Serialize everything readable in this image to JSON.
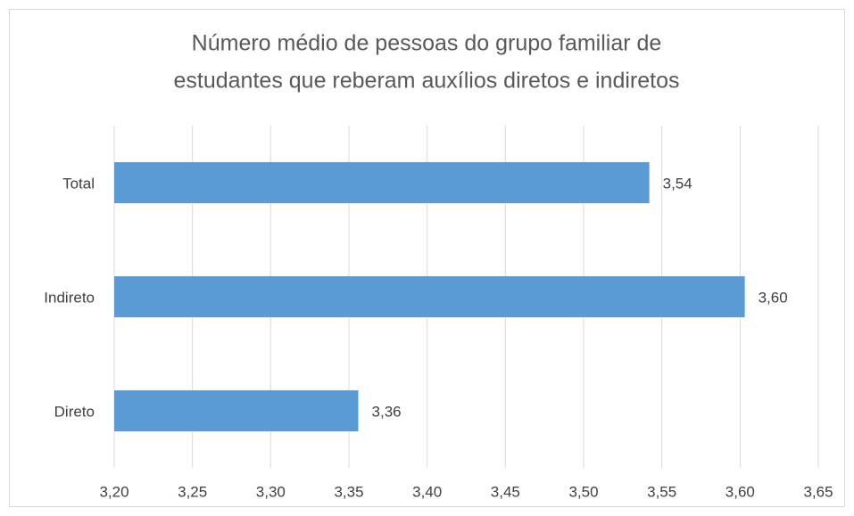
{
  "chart_data": {
    "type": "hbar",
    "title": [
      "Número médio de pessoas do grupo familiar de",
      "estudantes que reberam auxílios diretos e indiretos"
    ],
    "categories": [
      "Total",
      "Indireto",
      "Direto"
    ],
    "values": [
      3.542,
      3.603,
      3.356
    ],
    "value_labels": [
      "3,54",
      "3,60",
      "3,36"
    ],
    "color": "#5b9bd5",
    "xlim": [
      3.2,
      3.65
    ],
    "xticks": [
      {
        "value": 3.2,
        "label": "3,20"
      },
      {
        "value": 3.25,
        "label": "3,25"
      },
      {
        "value": 3.3,
        "label": "3,30"
      },
      {
        "value": 3.35,
        "label": "3,35"
      },
      {
        "value": 3.4,
        "label": "3,40"
      },
      {
        "value": 3.45,
        "label": "3,45"
      },
      {
        "value": 3.5,
        "label": "3,50"
      },
      {
        "value": 3.55,
        "label": "3,55"
      },
      {
        "value": 3.6,
        "label": "3,60"
      },
      {
        "value": 3.65,
        "label": "3,65"
      }
    ],
    "grid": true
  }
}
